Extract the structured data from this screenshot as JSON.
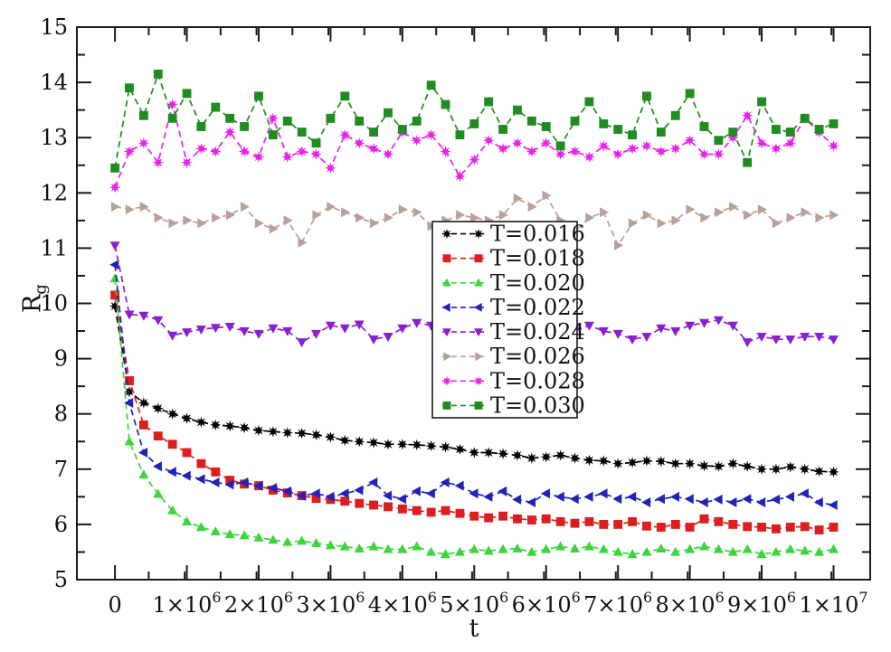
{
  "chart_data": {
    "type": "line",
    "title": "",
    "xlabel": "t",
    "ylabel_base": "R",
    "ylabel_sub": "g",
    "xlim": [
      -530000,
      10510000
    ],
    "ylim": [
      5,
      15
    ],
    "grid": false,
    "legend_position": "center",
    "x_major_ticks": [
      0,
      1000000,
      2000000,
      3000000,
      4000000,
      5000000,
      6000000,
      7000000,
      8000000,
      9000000,
      10000000
    ],
    "x_tick_labels": [
      {
        "m": "0",
        "e": ""
      },
      {
        "m": "1×10",
        "e": "6"
      },
      {
        "m": "2×10",
        "e": "6"
      },
      {
        "m": "3×10",
        "e": "6"
      },
      {
        "m": "4×10",
        "e": "6"
      },
      {
        "m": "5×10",
        "e": "6"
      },
      {
        "m": "6×10",
        "e": "6"
      },
      {
        "m": "7×10",
        "e": "6"
      },
      {
        "m": "8×10",
        "e": "6"
      },
      {
        "m": "9×10",
        "e": "6"
      },
      {
        "m": "1×10",
        "e": "7"
      }
    ],
    "y_major_ticks": [
      5,
      6,
      7,
      8,
      9,
      10,
      11,
      12,
      13,
      14,
      15
    ],
    "x_minor_step": 500000,
    "y_minor_step": 0.5,
    "x_step": 200000,
    "series": [
      {
        "name": "T=0.016",
        "color": "#000000",
        "marker": "burst",
        "values": [
          9.95,
          8.4,
          8.2,
          8.1,
          8.0,
          7.92,
          7.85,
          7.8,
          7.78,
          7.75,
          7.7,
          7.68,
          7.66,
          7.65,
          7.62,
          7.58,
          7.52,
          7.5,
          7.48,
          7.45,
          7.45,
          7.44,
          7.42,
          7.4,
          7.36,
          7.3,
          7.3,
          7.28,
          7.25,
          7.2,
          7.22,
          7.25,
          7.2,
          7.16,
          7.15,
          7.1,
          7.12,
          7.15,
          7.14,
          7.1,
          7.1,
          7.06,
          7.05,
          7.1,
          7.05,
          7.0,
          7.0,
          7.04,
          7.0,
          6.96,
          6.95
        ]
      },
      {
        "name": "T=0.018",
        "color": "#dd1e1e",
        "marker": "square",
        "values": [
          10.15,
          8.6,
          7.8,
          7.6,
          7.45,
          7.3,
          7.1,
          6.95,
          6.8,
          6.73,
          6.7,
          6.62,
          6.57,
          6.52,
          6.47,
          6.45,
          6.42,
          6.38,
          6.35,
          6.32,
          6.28,
          6.25,
          6.22,
          6.25,
          6.2,
          6.15,
          6.12,
          6.15,
          6.1,
          6.08,
          6.1,
          6.05,
          6.02,
          6.05,
          6.0,
          6.0,
          6.05,
          5.97,
          5.95,
          6.0,
          5.95,
          6.1,
          6.05,
          6.0,
          5.96,
          5.95,
          5.92,
          5.95,
          5.96,
          5.9,
          5.95
        ]
      },
      {
        "name": "T=0.020",
        "color": "#3cd63c",
        "marker": "triangle-up",
        "values": [
          10.45,
          7.5,
          6.9,
          6.55,
          6.25,
          6.05,
          5.95,
          5.87,
          5.82,
          5.8,
          5.76,
          5.72,
          5.68,
          5.7,
          5.66,
          5.62,
          5.6,
          5.56,
          5.6,
          5.55,
          5.55,
          5.6,
          5.5,
          5.46,
          5.5,
          5.55,
          5.52,
          5.55,
          5.56,
          5.5,
          5.55,
          5.6,
          5.56,
          5.6,
          5.55,
          5.5,
          5.46,
          5.5,
          5.56,
          5.5,
          5.55,
          5.6,
          5.55,
          5.5,
          5.55,
          5.46,
          5.5,
          5.55,
          5.52,
          5.5,
          5.55
        ]
      },
      {
        "name": "T=0.022",
        "color": "#2121bb",
        "marker": "triangle-left",
        "values": [
          10.7,
          8.2,
          7.3,
          7.05,
          6.95,
          6.88,
          6.82,
          6.76,
          6.72,
          6.76,
          6.7,
          6.66,
          6.6,
          6.52,
          6.56,
          6.5,
          6.56,
          6.62,
          6.76,
          6.52,
          6.46,
          6.6,
          6.56,
          6.76,
          6.7,
          6.56,
          6.5,
          6.6,
          6.45,
          6.4,
          6.56,
          6.5,
          6.46,
          6.5,
          6.56,
          6.46,
          6.5,
          6.4,
          6.46,
          6.5,
          6.46,
          6.4,
          6.45,
          6.4,
          6.46,
          6.4,
          6.45,
          6.5,
          6.56,
          6.4,
          6.35
        ]
      },
      {
        "name": "T=0.024",
        "color": "#8b1fd0",
        "marker": "triangle-down",
        "values": [
          11.05,
          9.8,
          9.78,
          9.7,
          9.42,
          9.48,
          9.53,
          9.56,
          9.58,
          9.5,
          9.45,
          9.55,
          9.5,
          9.3,
          9.45,
          9.6,
          9.55,
          9.62,
          9.35,
          9.4,
          9.55,
          9.65,
          9.6,
          9.4,
          9.2,
          9.45,
          9.5,
          9.55,
          9.5,
          9.45,
          9.4,
          9.45,
          9.5,
          9.6,
          9.5,
          9.45,
          9.35,
          9.4,
          9.55,
          9.5,
          9.6,
          9.65,
          9.7,
          9.6,
          9.3,
          9.4,
          9.35,
          9.35,
          9.4,
          9.4,
          9.35
        ]
      },
      {
        "name": "T=0.026",
        "color": "#b9a098",
        "marker": "triangle-right",
        "values": [
          11.75,
          11.7,
          11.75,
          11.55,
          11.45,
          11.5,
          11.45,
          11.55,
          11.6,
          11.75,
          11.45,
          11.35,
          11.5,
          11.1,
          11.6,
          11.75,
          11.65,
          11.55,
          11.45,
          11.55,
          11.7,
          11.65,
          11.4,
          11.5,
          11.6,
          11.55,
          11.5,
          11.6,
          11.9,
          11.75,
          11.95,
          11.5,
          11.3,
          11.55,
          11.65,
          11.05,
          11.45,
          11.6,
          11.45,
          11.5,
          11.7,
          11.55,
          11.65,
          11.75,
          11.6,
          11.7,
          11.45,
          11.55,
          11.65,
          11.55,
          11.6
        ]
      },
      {
        "name": "T=0.028",
        "color": "#e822e8",
        "marker": "burst",
        "values": [
          12.1,
          12.75,
          12.9,
          12.55,
          13.6,
          12.55,
          12.8,
          12.75,
          13.1,
          12.75,
          12.65,
          13.35,
          12.65,
          12.75,
          12.7,
          12.45,
          13.05,
          12.9,
          12.8,
          12.7,
          13.1,
          12.95,
          13.05,
          12.75,
          12.3,
          12.6,
          12.95,
          12.8,
          12.9,
          12.75,
          12.9,
          12.7,
          12.75,
          12.65,
          12.85,
          12.7,
          12.8,
          12.85,
          12.75,
          12.8,
          12.95,
          12.7,
          12.7,
          13.0,
          13.4,
          12.9,
          12.8,
          12.9,
          13.35,
          13.1,
          12.85
        ]
      },
      {
        "name": "T=0.030",
        "color": "#1f8c1f",
        "marker": "square",
        "values": [
          12.45,
          13.9,
          13.4,
          14.15,
          13.35,
          13.8,
          13.2,
          13.55,
          13.35,
          13.2,
          13.75,
          13.05,
          13.3,
          13.1,
          12.9,
          13.35,
          13.75,
          13.3,
          13.1,
          13.45,
          13.15,
          13.3,
          13.95,
          13.6,
          13.05,
          13.25,
          13.65,
          13.15,
          13.5,
          13.3,
          13.2,
          12.85,
          13.3,
          13.65,
          13.25,
          13.15,
          13.05,
          13.75,
          13.1,
          13.4,
          13.8,
          13.2,
          12.95,
          13.1,
          12.55,
          13.65,
          13.15,
          13.1,
          13.35,
          13.15,
          13.25
        ]
      }
    ]
  }
}
